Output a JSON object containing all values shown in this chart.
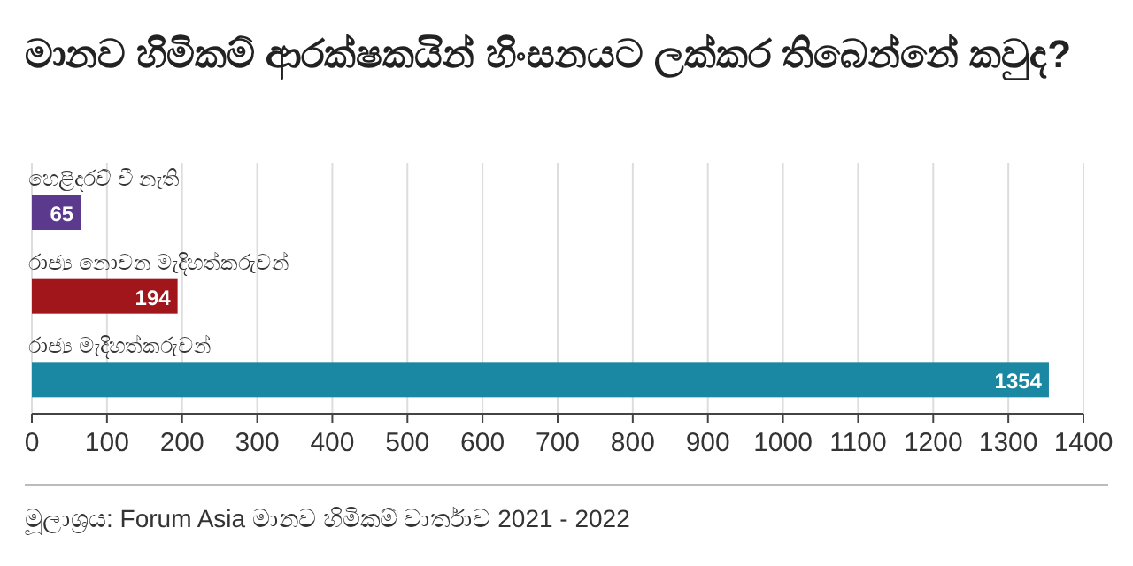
{
  "chart_data": {
    "type": "bar",
    "orientation": "horizontal",
    "title": "මානව හිමිකම් ආරක්ෂකයින් හිංසනයට ලක්කර තිබෙන්නේ කවුද?",
    "categories": [
      "හෙළිදරව් වී නැති",
      "රාජ්‍ය නොවන මැදිහත්කරුවන්",
      "රාජ්‍ය මැදිහත්කරුවන්"
    ],
    "values": [
      65,
      194,
      1354
    ],
    "colors": [
      "#5b3a8e",
      "#a0161b",
      "#1a87a3"
    ],
    "xlim": [
      0,
      1400
    ],
    "xticks": [
      0,
      100,
      200,
      300,
      400,
      500,
      600,
      700,
      800,
      900,
      1000,
      1100,
      1200,
      1300,
      1400
    ],
    "grid": "x",
    "data_labels": true,
    "annotations": [
      "මූලාශ්‍රය: Forum Asia මානව හිමිකම් වාර්තාව 2021 - 2022"
    ]
  }
}
